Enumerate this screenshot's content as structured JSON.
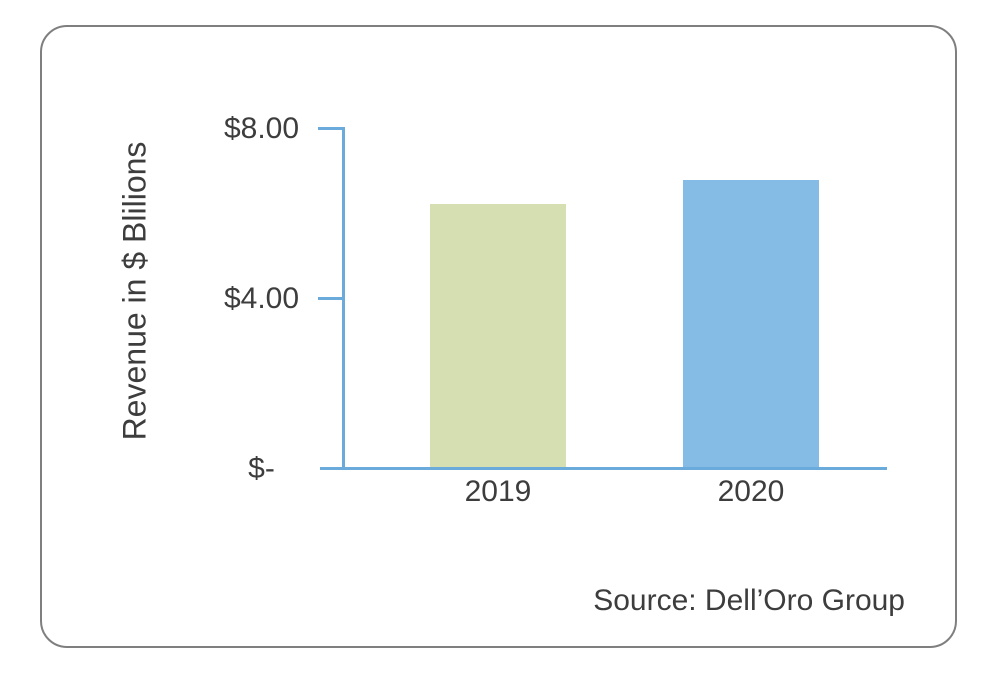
{
  "chart_data": {
    "type": "bar",
    "categories": [
      "2019",
      "2020"
    ],
    "values": [
      6.2,
      6.75
    ],
    "bar_colors": [
      "#d6dfb2",
      "#85bce5"
    ],
    "title": "",
    "xlabel": "",
    "ylabel": "Revenue in $ Blilions",
    "ylim": [
      0,
      8
    ],
    "yticks": [
      {
        "value": 8,
        "label": "$8.00"
      },
      {
        "value": 4,
        "label": "$4.00"
      },
      {
        "value": 0,
        "label": "$-"
      }
    ],
    "grid": false,
    "legend": false,
    "source": "Source: Dell’Oro Group",
    "axis_color": "#6aabdc",
    "text_color": "#3d3d3d",
    "border_color": "#7f7f7f"
  }
}
